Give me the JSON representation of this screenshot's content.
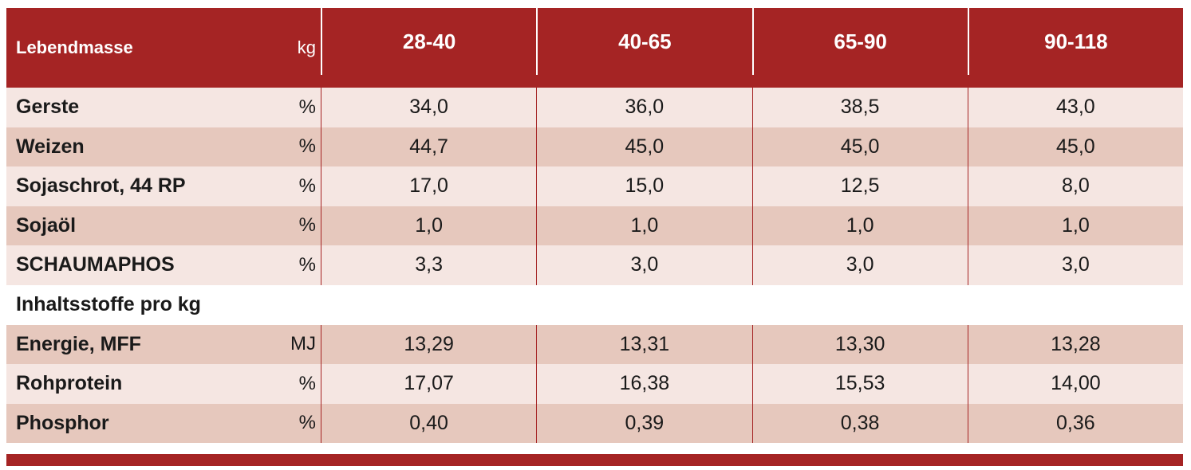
{
  "header": {
    "label": "Lebendmasse",
    "unit": "kg",
    "columns": [
      "28-40",
      "40-65",
      "65-90",
      "90-118"
    ]
  },
  "rows_top": [
    {
      "label": "Gerste",
      "unit": "%",
      "values": [
        "34,0",
        "36,0",
        "38,5",
        "43,0"
      ]
    },
    {
      "label": "Weizen",
      "unit": "%",
      "values": [
        "44,7",
        "45,0",
        "45,0",
        "45,0"
      ]
    },
    {
      "label": "Sojaschrot, 44 RP",
      "unit": "%",
      "values": [
        "17,0",
        "15,0",
        "12,5",
        "8,0"
      ]
    },
    {
      "label": "Sojaöl",
      "unit": "%",
      "values": [
        "1,0",
        "1,0",
        "1,0",
        "1,0"
      ]
    },
    {
      "label": "SCHAUMAPHOS",
      "unit": "%",
      "values": [
        "3,3",
        "3,0",
        "3,0",
        "3,0"
      ]
    }
  ],
  "section_title": "Inhaltsstoffe pro kg",
  "rows_bottom": [
    {
      "label": "Energie, MFF",
      "unit": "MJ",
      "values": [
        "13,29",
        "13,31",
        "13,30",
        "13,28"
      ]
    },
    {
      "label": "Rohprotein",
      "unit": "%",
      "values": [
        "17,07",
        "16,38",
        "15,53",
        "14,00"
      ]
    },
    {
      "label": "Phosphor",
      "unit": "%",
      "values": [
        "0,40",
        "0,39",
        "0,38",
        "0,36"
      ]
    }
  ],
  "colors": {
    "accent": "#a52424",
    "row_light": "#f5e6e2",
    "row_dark": "#e6c8bd"
  }
}
